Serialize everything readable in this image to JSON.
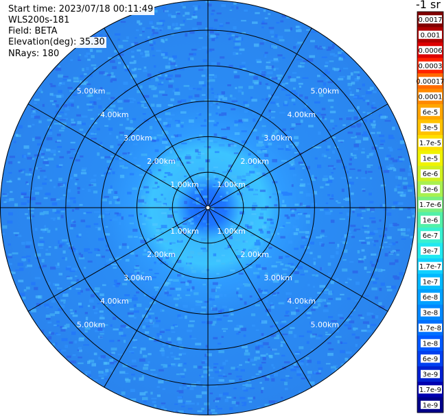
{
  "info": {
    "start_time": "Start time: 2023/07/18 00:11:49",
    "instrument": "WLS200s-181",
    "field": "Field: BETA",
    "elevation": "Elevation(deg): 35.30",
    "nrays": "NRays: 180"
  },
  "colors": {
    "background": "#ffffff",
    "grid": "#000000",
    "ring_label": "#ffffff"
  },
  "chart_data": {
    "type": "heatmap",
    "projection": "polar (PPI)",
    "field": "BETA",
    "unit_label": "-1 sr",
    "ring_labels": [
      "1.00km",
      "2.00km",
      "3.00km",
      "4.00km",
      "5.00km"
    ],
    "ring_distances_km": [
      1,
      2,
      3,
      4,
      5
    ],
    "max_range_km": 5.85,
    "spoke_angles_deg": [
      0,
      30,
      60,
      90,
      120,
      150,
      180,
      210,
      240,
      270,
      300,
      330
    ],
    "colorbar_labels": [
      "0.0017",
      "0.001",
      "0.0006",
      "0.0003",
      "0.00017",
      "0.0001",
      "6e-5",
      "3e-5",
      "1.7e-5",
      "1e-5",
      "6e-6",
      "3e-6",
      "1.7e-6",
      "1e-6",
      "6e-7",
      "3e-7",
      "1.7e-7",
      "1e-7",
      "6e-8",
      "3e-8",
      "1.7e-8",
      "1e-8",
      "6e-9",
      "3e-9",
      "1.7e-9",
      "1e-9"
    ],
    "colorbar_colors": [
      "#800000",
      "#b00000",
      "#dd0000",
      "#ff2200",
      "#ff6a00",
      "#ff8a00",
      "#ffa600",
      "#ffc200",
      "#ffdf00",
      "#f0f200",
      "#d0f020",
      "#a8f050",
      "#78f080",
      "#52f0a8",
      "#38f0d0",
      "#20e8f0",
      "#10d0ff",
      "#00b8ff",
      "#00a0ff",
      "#0088ff",
      "#0070ff",
      "#0058ff",
      "#0040f0",
      "#0020d0",
      "#0000b0",
      "#00008a"
    ],
    "radial_profile": [
      {
        "range_km": 0.0,
        "color": "#1a66ff"
      },
      {
        "range_km": 0.5,
        "color": "#1e78ff"
      },
      {
        "range_km": 0.9,
        "color": "#3ab8ff"
      },
      {
        "range_km": 1.6,
        "color": "#3cc4ff"
      },
      {
        "range_km": 2.1,
        "color": "#2f9cff"
      },
      {
        "range_km": 3.0,
        "color": "#2a8cf5"
      },
      {
        "range_km": 5.85,
        "color": "#2a84ee"
      }
    ]
  }
}
